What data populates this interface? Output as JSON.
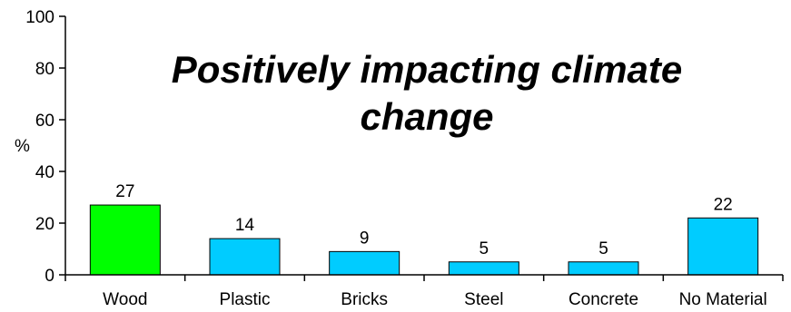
{
  "chart_data": {
    "type": "bar",
    "title_lines": [
      "Positively impacting climate",
      "change"
    ],
    "xlabel": "",
    "ylabel": "%",
    "ylim": [
      0,
      100
    ],
    "yticks": [
      0,
      20,
      40,
      60,
      80,
      100
    ],
    "categories": [
      "Wood",
      "Plastic",
      "Bricks",
      "Steel",
      "Concrete",
      "No Material"
    ],
    "values": [
      27,
      14,
      9,
      5,
      5,
      22
    ],
    "bar_colors": [
      "#00ff00",
      "#00ccff",
      "#00ccff",
      "#00ccff",
      "#00ccff",
      "#00ccff"
    ],
    "grid": false,
    "legend": "none"
  }
}
